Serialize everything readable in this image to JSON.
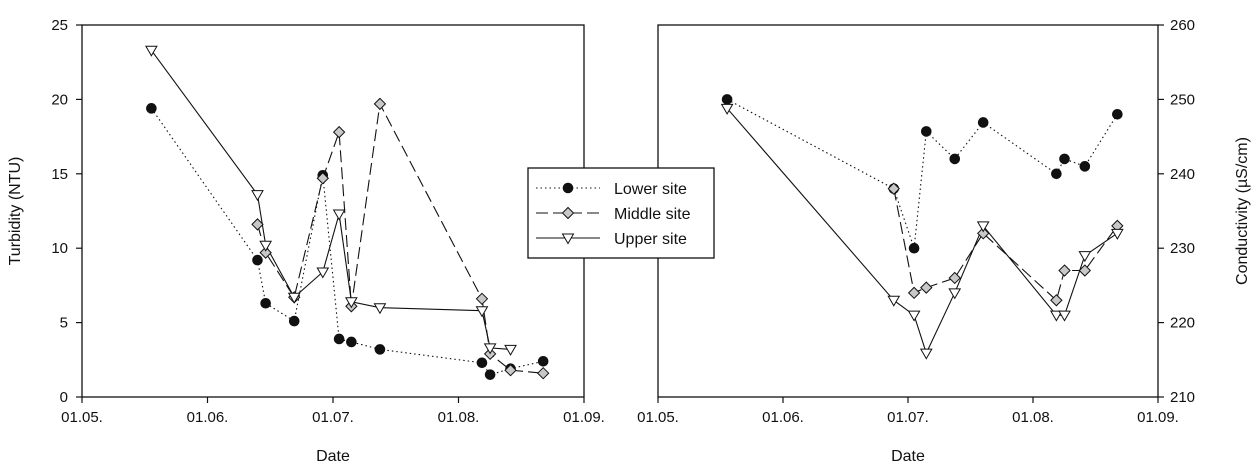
{
  "chart_data": [
    {
      "type": "line",
      "xlabel": "Date",
      "ylabel": "Turbidity (NTU)",
      "xlim": [
        "2023-05-01",
        "2023-09-01"
      ],
      "ylim": [
        0,
        25
      ],
      "x_ticks": [
        "01.05.",
        "01.06.",
        "01.07.",
        "01.08.",
        "01.09."
      ],
      "y_ticks": [
        "0",
        "5",
        "10",
        "15",
        "20",
        "25"
      ],
      "grid": false,
      "series": [
        {
          "name": "Lower site",
          "line": "dotted",
          "marker": "filled-circle",
          "points": [
            [
              "2023-05-18",
              19.4
            ],
            [
              "2023-06-13",
              9.2
            ],
            [
              "2023-06-15",
              6.3
            ],
            [
              "2023-06-22",
              5.1
            ],
            [
              "2023-06-29",
              14.9
            ],
            [
              "2023-07-03",
              3.9
            ],
            [
              "2023-07-06",
              3.7
            ],
            [
              "2023-07-13",
              3.2
            ],
            [
              "2023-08-07",
              2.3
            ],
            [
              "2023-08-09",
              1.5
            ],
            [
              "2023-08-14",
              1.9
            ],
            [
              "2023-08-22",
              2.4
            ]
          ]
        },
        {
          "name": "Middle site",
          "line": "dashed",
          "marker": "open-diamond",
          "points": [
            [
              "2023-06-13",
              11.6
            ],
            [
              "2023-06-15",
              9.7
            ],
            [
              "2023-06-22",
              6.7
            ],
            [
              "2023-06-29",
              14.7
            ],
            [
              "2023-07-03",
              17.8
            ],
            [
              "2023-07-06",
              6.1
            ],
            [
              "2023-07-13",
              19.7
            ],
            [
              "2023-08-07",
              6.6
            ],
            [
              "2023-08-09",
              2.9
            ],
            [
              "2023-08-14",
              1.8
            ],
            [
              "2023-08-22",
              1.6
            ]
          ]
        },
        {
          "name": "Upper site",
          "line": "solid",
          "marker": "open-triangle-down",
          "points": [
            [
              "2023-05-18",
              23.3
            ],
            [
              "2023-06-13",
              13.6
            ],
            [
              "2023-06-15",
              10.2
            ],
            [
              "2023-06-22",
              6.7
            ],
            [
              "2023-06-29",
              8.4
            ],
            [
              "2023-07-03",
              12.3
            ],
            [
              "2023-07-06",
              6.4
            ],
            [
              "2023-07-13",
              6.0
            ],
            [
              "2023-08-07",
              5.8
            ],
            [
              "2023-08-09",
              3.3
            ],
            [
              "2023-08-14",
              3.2
            ]
          ]
        }
      ]
    },
    {
      "type": "line",
      "xlabel": "Date",
      "ylabel": "Conductivity (µS/cm)",
      "xlim": [
        "2023-05-01",
        "2023-09-01"
      ],
      "ylim": [
        210,
        260
      ],
      "x_ticks": [
        "01.05.",
        "01.06.",
        "01.07.",
        "01.08.",
        "01.09."
      ],
      "y_ticks": [
        "210",
        "220",
        "230",
        "240",
        "250",
        "260"
      ],
      "y_axis_side": "right",
      "grid": false,
      "series": [
        {
          "name": "Lower site",
          "line": "dotted",
          "marker": "filled-circle",
          "points": [
            [
              "2023-05-18",
              250.0
            ],
            [
              "2023-06-28",
              238.0
            ],
            [
              "2023-07-03",
              230.0
            ],
            [
              "2023-07-06",
              245.7
            ],
            [
              "2023-07-13",
              242.0
            ],
            [
              "2023-07-20",
              246.9
            ],
            [
              "2023-08-07",
              240.0
            ],
            [
              "2023-08-09",
              242.0
            ],
            [
              "2023-08-14",
              241.0
            ],
            [
              "2023-08-22",
              248.0
            ]
          ]
        },
        {
          "name": "Middle site",
          "line": "dashed",
          "marker": "open-diamond",
          "points": [
            [
              "2023-06-28",
              238.0
            ],
            [
              "2023-07-03",
              224.0
            ],
            [
              "2023-07-06",
              224.7
            ],
            [
              "2023-07-13",
              226.0
            ],
            [
              "2023-07-20",
              232.0
            ],
            [
              "2023-08-07",
              223.0
            ],
            [
              "2023-08-09",
              227.0
            ],
            [
              "2023-08-14",
              227.0
            ],
            [
              "2023-08-22",
              233.0
            ]
          ]
        },
        {
          "name": "Upper site",
          "line": "solid",
          "marker": "open-triangle-down",
          "points": [
            [
              "2023-05-18",
              248.8
            ],
            [
              "2023-06-28",
              223.0
            ],
            [
              "2023-07-03",
              221.0
            ],
            [
              "2023-07-06",
              215.9
            ],
            [
              "2023-07-13",
              224.0
            ],
            [
              "2023-07-20",
              233.0
            ],
            [
              "2023-08-07",
              221.0
            ],
            [
              "2023-08-09",
              221.0
            ],
            [
              "2023-08-14",
              229.0
            ],
            [
              "2023-08-22",
              232.0
            ]
          ]
        }
      ]
    }
  ],
  "legend": {
    "placement": "center, between panels",
    "entries": [
      "Lower site",
      "Middle site",
      "Upper site"
    ]
  },
  "colors": {
    "ink": "#111111",
    "diamond_fill": "#c8c8c8",
    "background": "#ffffff"
  }
}
